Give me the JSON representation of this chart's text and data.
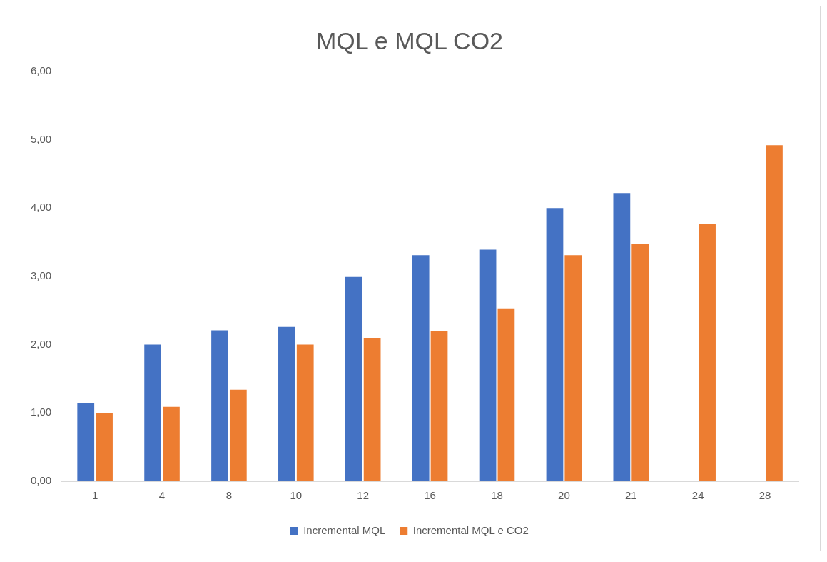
{
  "chart_data": {
    "type": "bar",
    "title": "MQL e MQL CO2",
    "categories": [
      "1",
      "4",
      "8",
      "10",
      "12",
      "16",
      "18",
      "20",
      "21",
      "24",
      "28"
    ],
    "series": [
      {
        "name": "Incremental MQL",
        "color": "#4472c4",
        "values": [
          1.14,
          2.0,
          2.21,
          2.26,
          2.99,
          3.31,
          3.39,
          4.0,
          4.22,
          null,
          null
        ]
      },
      {
        "name": "Incremental MQL e CO2",
        "color": "#ed7d31",
        "values": [
          1.0,
          1.09,
          1.34,
          2.0,
          2.1,
          2.2,
          2.52,
          3.31,
          3.48,
          3.77,
          4.92
        ]
      }
    ],
    "ylim": [
      0,
      6
    ],
    "yticks": [
      {
        "value": 0,
        "label": "0,00"
      },
      {
        "value": 1,
        "label": "1,00"
      },
      {
        "value": 2,
        "label": "2,00"
      },
      {
        "value": 3,
        "label": "3,00"
      },
      {
        "value": 4,
        "label": "4,00"
      },
      {
        "value": 5,
        "label": "5,00"
      },
      {
        "value": 6,
        "label": "6,00"
      }
    ],
    "grid": false,
    "legend": "bottom"
  }
}
